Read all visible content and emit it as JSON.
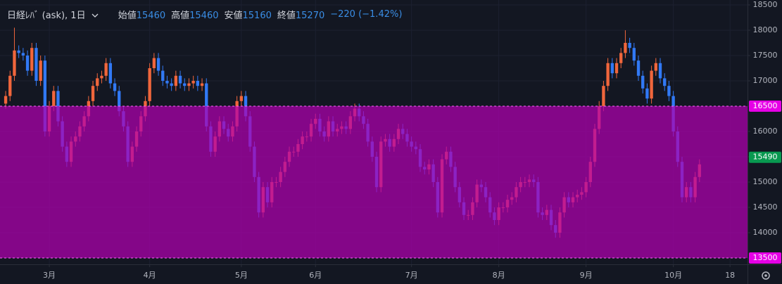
{
  "chart_data": {
    "type": "candlestick",
    "title": "日経ﾚﾊﾞ (ask), 1日",
    "ohlc_legend": [
      {
        "label": "始値",
        "value": 15460
      },
      {
        "label": "高値",
        "value": 15460
      },
      {
        "label": "安値",
        "value": 15160
      },
      {
        "label": "終値",
        "value": 15270
      }
    ],
    "change_text": "−220 (−1.42%)",
    "up_color": "#f0663c",
    "down_color": "#3179f5",
    "open": [
      16550,
      16700,
      17100,
      17600,
      17550,
      17500,
      17200,
      17650,
      17000,
      17400,
      16000,
      16500,
      16800,
      16200,
      15700,
      15400,
      15800,
      15900,
      16100,
      16300,
      16600,
      16900,
      17050,
      17100,
      17350,
      16950,
      16800,
      16400,
      16100,
      15400,
      15700,
      16000,
      16300,
      16600,
      17250,
      17450,
      17200,
      17000,
      16950,
      16900,
      17100,
      16950,
      16900,
      16950,
      17000,
      16900,
      16950,
      16100,
      15600,
      15900,
      16200,
      16050,
      15900,
      16100,
      16600,
      16700,
      16300,
      15700,
      15100,
      14400,
      14900,
      14600,
      15000,
      15000,
      15200,
      15400,
      15600,
      15600,
      15750,
      15900,
      15900,
      16150,
      16250,
      16000,
      15900,
      16200,
      16000,
      16050,
      16100,
      16050,
      16300,
      16450,
      16300,
      16150,
      15800,
      15500,
      14900,
      15800,
      15850,
      15700,
      15850,
      16050,
      15950,
      15800,
      15700,
      15650,
      15300,
      15250,
      15350,
      15000,
      14400,
      15450,
      15600,
      15300,
      14900,
      14600,
      14350,
      14350,
      14600,
      14950,
      14900,
      14700,
      14400,
      14250,
      14500,
      14500,
      14650,
      14700,
      14900,
      15000,
      15000,
      15050,
      15000,
      14400,
      14350,
      14450,
      14150,
      14000,
      14400,
      14700,
      14600,
      14700,
      14750,
      14800,
      15000,
      15400,
      16050,
      16500,
      16900,
      17350,
      17150,
      17350,
      17550,
      17750,
      17650,
      17400,
      17100,
      16850,
      16650,
      17200,
      17350,
      17050,
      16900,
      16700,
      16000,
      15400,
      14700,
      14900,
      14700,
      15100
    ],
    "high": [
      16800,
      17200,
      18050,
      17700,
      17650,
      17600,
      17750,
      17750,
      17500,
      17500,
      16600,
      16900,
      16900,
      16300,
      15800,
      15900,
      16000,
      16200,
      16400,
      16700,
      17000,
      17150,
      17200,
      17450,
      17450,
      17050,
      16900,
      16500,
      16200,
      15800,
      16100,
      16400,
      16700,
      17350,
      17550,
      17550,
      17300,
      17100,
      17050,
      17200,
      17200,
      17050,
      17050,
      17100,
      17100,
      17050,
      17050,
      16200,
      16000,
      16300,
      16300,
      16150,
      16200,
      16700,
      16800,
      16800,
      16400,
      15800,
      15200,
      15000,
      15000,
      15100,
      15100,
      15300,
      15500,
      15700,
      15700,
      15850,
      16000,
      16000,
      16250,
      16350,
      16350,
      16100,
      16300,
      16300,
      16150,
      16200,
      16200,
      16400,
      16550,
      16550,
      16400,
      16250,
      15900,
      15600,
      15900,
      15950,
      15950,
      15950,
      16150,
      16150,
      16050,
      15900,
      15800,
      15750,
      15400,
      15450,
      15450,
      15100,
      15550,
      15700,
      15700,
      15400,
      15000,
      14700,
      14450,
      14700,
      15050,
      15050,
      15000,
      14800,
      14500,
      14600,
      14600,
      14750,
      14800,
      15000,
      15100,
      15100,
      15150,
      15150,
      15100,
      14500,
      14550,
      14550,
      14250,
      14500,
      14800,
      14800,
      14800,
      14850,
      14900,
      15100,
      15500,
      16150,
      16600,
      17000,
      17450,
      17450,
      17450,
      17650,
      18000,
      17850,
      17750,
      17500,
      17200,
      16950,
      17300,
      17450,
      17450,
      17150,
      17000,
      16800,
      16100,
      15500,
      15000,
      15000,
      15200,
      15450
    ],
    "low": [
      16450,
      16600,
      17000,
      17450,
      17400,
      17100,
      17100,
      16900,
      16900,
      15900,
      15900,
      16400,
      16100,
      15600,
      15300,
      15300,
      15700,
      15800,
      16000,
      16200,
      16500,
      16800,
      16950,
      17000,
      16850,
      16700,
      16300,
      16000,
      15300,
      15300,
      15600,
      15900,
      16200,
      16500,
      17150,
      17100,
      16900,
      16850,
      16800,
      16800,
      16850,
      16800,
      16800,
      16850,
      16800,
      16800,
      16000,
      15500,
      15500,
      15800,
      15950,
      15800,
      15800,
      16000,
      16500,
      16200,
      15600,
      15000,
      14300,
      14300,
      14500,
      14500,
      14900,
      14900,
      15100,
      15300,
      15500,
      15500,
      15650,
      15800,
      15800,
      16050,
      15900,
      15800,
      15800,
      15900,
      15900,
      15950,
      15950,
      15950,
      16200,
      16200,
      16050,
      15700,
      15400,
      14800,
      14800,
      15700,
      15600,
      15600,
      15750,
      15850,
      15700,
      15600,
      15550,
      15200,
      15150,
      15150,
      14900,
      14300,
      14300,
      15350,
      15200,
      14800,
      14500,
      14250,
      14250,
      14250,
      14500,
      14800,
      14600,
      14300,
      14150,
      14150,
      14400,
      14400,
      14550,
      14600,
      14800,
      14900,
      14900,
      14900,
      14300,
      14250,
      14250,
      14050,
      13900,
      13900,
      14300,
      14500,
      14500,
      14600,
      14650,
      14700,
      14900,
      15300,
      15950,
      16400,
      16800,
      17050,
      17050,
      17250,
      17450,
      17550,
      17300,
      17000,
      16750,
      16550,
      16550,
      17100,
      16950,
      16800,
      16600,
      15900,
      15300,
      14600,
      14600,
      14600,
      14600,
      15000
    ],
    "close": [
      16700,
      17100,
      17600,
      17550,
      17500,
      17200,
      17650,
      17000,
      17400,
      16000,
      16500,
      16800,
      16200,
      15700,
      15400,
      15800,
      15900,
      16100,
      16300,
      16600,
      16900,
      17050,
      17100,
      17350,
      16950,
      16800,
      16400,
      16100,
      15400,
      15700,
      16000,
      16300,
      16600,
      17250,
      17450,
      17200,
      17000,
      16950,
      16900,
      17100,
      16950,
      16900,
      16950,
      17000,
      16900,
      16950,
      16100,
      15600,
      15900,
      16200,
      16050,
      15900,
      16100,
      16600,
      16700,
      16300,
      15700,
      15100,
      14400,
      14900,
      14600,
      15000,
      15000,
      15200,
      15400,
      15600,
      15600,
      15750,
      15900,
      15900,
      16150,
      16250,
      16000,
      15900,
      16200,
      16000,
      16050,
      16100,
      16050,
      16300,
      16450,
      16300,
      16150,
      15800,
      15500,
      14900,
      15800,
      15850,
      15700,
      15850,
      16050,
      15950,
      15800,
      15700,
      15650,
      15300,
      15250,
      15350,
      15000,
      14400,
      15450,
      15600,
      15300,
      14900,
      14600,
      14350,
      14350,
      14600,
      14950,
      14900,
      14700,
      14400,
      14250,
      14500,
      14500,
      14650,
      14700,
      14900,
      15000,
      15000,
      15050,
      15000,
      14400,
      14350,
      14450,
      14150,
      14000,
      14400,
      14700,
      14600,
      14700,
      14750,
      14800,
      15000,
      15400,
      16050,
      16500,
      16900,
      17350,
      17150,
      17350,
      17550,
      17750,
      17650,
      17400,
      17100,
      16850,
      16650,
      17200,
      17350,
      17050,
      16900,
      16700,
      16000,
      15400,
      14700,
      14900,
      14700,
      15100,
      15350
    ],
    "xlim": [
      -1.3,
      170
    ],
    "xticks": [
      {
        "value": 10,
        "label": "3月"
      },
      {
        "value": 33,
        "label": "4月"
      },
      {
        "value": 54,
        "label": "5月"
      },
      {
        "value": 71,
        "label": "6月"
      },
      {
        "value": 93,
        "label": "7月"
      },
      {
        "value": 113,
        "label": "8月"
      },
      {
        "value": 133,
        "label": "9月"
      },
      {
        "value": 153,
        "label": "10月"
      },
      {
        "value": 166,
        "label": "18"
      }
    ],
    "ylim": [
      13375,
      18597
    ],
    "yticks": [
      13500,
      14000,
      14500,
      15000,
      15500,
      16000,
      16500,
      17000,
      17500,
      18000,
      18500
    ],
    "grid": true,
    "zone": {
      "from": 13500,
      "to": 16500,
      "color": "#b000b0"
    },
    "current_price": 15490,
    "current_price_color": "#089950"
  }
}
